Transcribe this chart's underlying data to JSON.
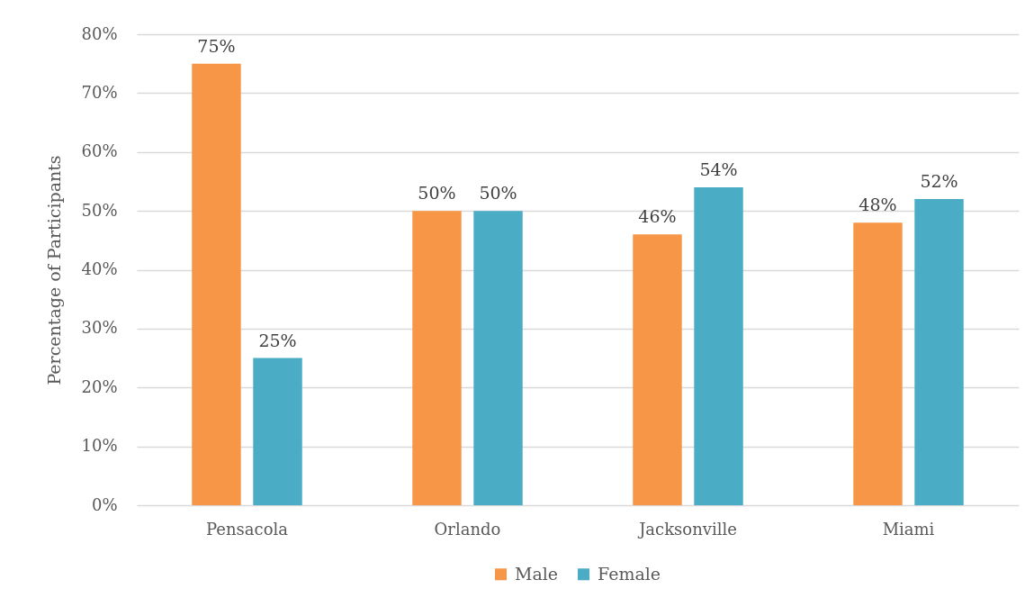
{
  "chart_data": {
    "type": "bar",
    "ylabel": "Percentage of Participants",
    "categories": [
      "Pensacola",
      "Orlando",
      "Jacksonville",
      "Miami"
    ],
    "series": [
      {
        "name": "Male",
        "color": "#f79646",
        "values": [
          75,
          50,
          46,
          48
        ],
        "value_labels": [
          "75%",
          "50%",
          "46%",
          "48%"
        ]
      },
      {
        "name": "Female",
        "color": "#4bacc6",
        "values": [
          25,
          50,
          54,
          52
        ],
        "value_labels": [
          "25%",
          "50%",
          "54%",
          "52%"
        ]
      }
    ],
    "ylim": [
      0,
      80
    ],
    "yticks": [
      {
        "value": 0,
        "label": "0%"
      },
      {
        "value": 10,
        "label": "10%"
      },
      {
        "value": 20,
        "label": "20%"
      },
      {
        "value": 30,
        "label": "30%"
      },
      {
        "value": 40,
        "label": "40%"
      },
      {
        "value": 50,
        "label": "50%"
      },
      {
        "value": 60,
        "label": "60%"
      },
      {
        "value": 70,
        "label": "70%"
      },
      {
        "value": 80,
        "label": "80%"
      }
    ],
    "grid": "y",
    "legend": "bottom"
  }
}
